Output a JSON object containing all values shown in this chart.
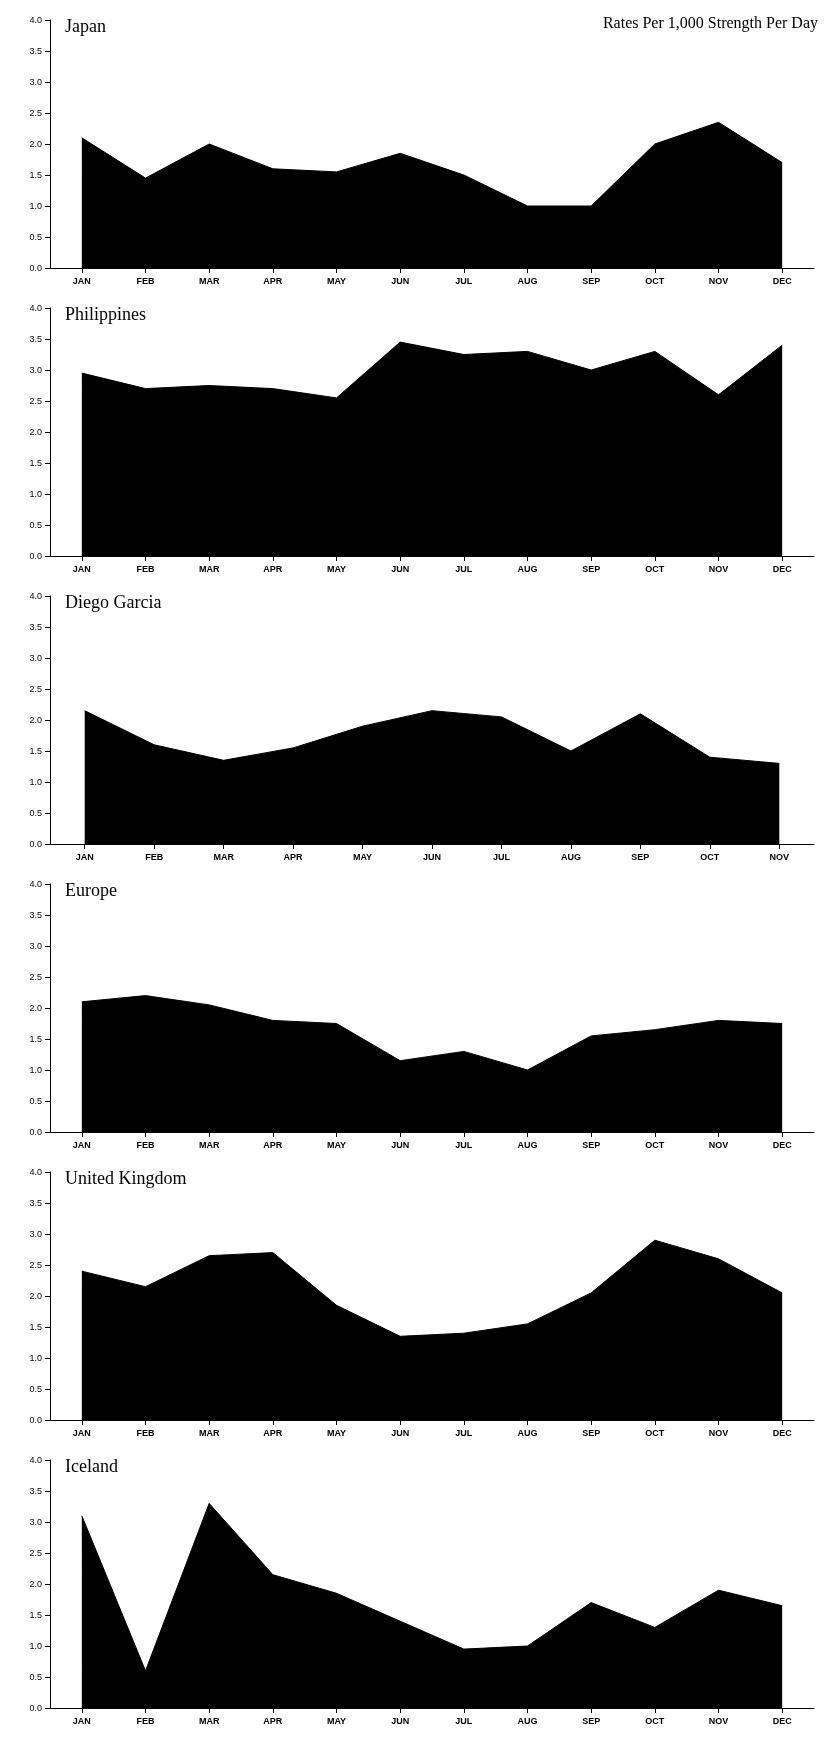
{
  "chart_data": [
    {
      "type": "area",
      "title": "Japan",
      "annotations": [
        "Rates Per 1,000 Strength Per Day"
      ],
      "categories": [
        "JAN",
        "FEB",
        "MAR",
        "APR",
        "MAY",
        "JUN",
        "JUL",
        "AUG",
        "SEP",
        "OCT",
        "NOV",
        "DEC"
      ],
      "series": [
        {
          "color": "#000000",
          "values": [
            2.1,
            1.45,
            2.0,
            1.6,
            1.55,
            1.85,
            1.5,
            1.0,
            1.0,
            2.0,
            2.35,
            1.7
          ]
        }
      ],
      "ylim": [
        0,
        4
      ],
      "yticks": [
        {
          "value": 0,
          "label": "0.0"
        },
        {
          "value": 0.5,
          "label": "0.5"
        },
        {
          "value": 1,
          "label": "1.0"
        },
        {
          "value": 1.5,
          "label": "1.5"
        },
        {
          "value": 2,
          "label": "2.0"
        },
        {
          "value": 2.5,
          "label": "2.5"
        },
        {
          "value": 3,
          "label": "3.0"
        },
        {
          "value": 3.5,
          "label": "3.5"
        },
        {
          "value": 4,
          "label": "4.0"
        }
      ]
    },
    {
      "type": "area",
      "title": "Philippines",
      "categories": [
        "JAN",
        "FEB",
        "MAR",
        "APR",
        "MAY",
        "JUN",
        "JUL",
        "AUG",
        "SEP",
        "OCT",
        "NOV",
        "DEC"
      ],
      "series": [
        {
          "color": "#000000",
          "values": [
            2.95,
            2.7,
            2.75,
            2.7,
            2.55,
            3.45,
            3.25,
            3.3,
            3.0,
            3.3,
            2.6,
            3.4
          ]
        }
      ],
      "ylim": [
        0,
        4
      ],
      "yticks": [
        {
          "value": 0,
          "label": "0.0"
        },
        {
          "value": 0.5,
          "label": "0.5"
        },
        {
          "value": 1,
          "label": "1.0"
        },
        {
          "value": 1.5,
          "label": "1.5"
        },
        {
          "value": 2,
          "label": "2.0"
        },
        {
          "value": 2.5,
          "label": "2.5"
        },
        {
          "value": 3,
          "label": "3.0"
        },
        {
          "value": 3.5,
          "label": "3.5"
        },
        {
          "value": 4,
          "label": "4.0"
        }
      ]
    },
    {
      "type": "area",
      "title": "Diego Garcia",
      "categories": [
        "JAN",
        "FEB",
        "MAR",
        "APR",
        "MAY",
        "JUN",
        "JUL",
        "AUG",
        "SEP",
        "OCT",
        "NOV"
      ],
      "series": [
        {
          "color": "#000000",
          "values": [
            2.15,
            1.6,
            1.35,
            1.55,
            1.9,
            2.15,
            2.05,
            1.5,
            2.1,
            1.4,
            1.3
          ]
        }
      ],
      "ylim": [
        0,
        4
      ],
      "yticks": [
        {
          "value": 0,
          "label": "0.0"
        },
        {
          "value": 0.5,
          "label": "0.5"
        },
        {
          "value": 1,
          "label": "1.0"
        },
        {
          "value": 1.5,
          "label": "1.5"
        },
        {
          "value": 2,
          "label": "2.0"
        },
        {
          "value": 2.5,
          "label": "2.5"
        },
        {
          "value": 3,
          "label": "3.0"
        },
        {
          "value": 3.5,
          "label": "3.5"
        },
        {
          "value": 4,
          "label": "4.0"
        }
      ]
    },
    {
      "type": "area",
      "title": "Europe",
      "categories": [
        "JAN",
        "FEB",
        "MAR",
        "APR",
        "MAY",
        "JUN",
        "JUL",
        "AUG",
        "SEP",
        "OCT",
        "NOV",
        "DEC"
      ],
      "series": [
        {
          "color": "#000000",
          "values": [
            2.1,
            2.2,
            2.05,
            1.8,
            1.75,
            1.15,
            1.3,
            1.0,
            1.55,
            1.65,
            1.8,
            1.75
          ]
        }
      ],
      "ylim": [
        0,
        4
      ],
      "yticks": [
        {
          "value": 0,
          "label": "0.0"
        },
        {
          "value": 0.5,
          "label": "0.5"
        },
        {
          "value": 1,
          "label": "1.0"
        },
        {
          "value": 1.5,
          "label": "1.5"
        },
        {
          "value": 2,
          "label": "2.0"
        },
        {
          "value": 2.5,
          "label": "2.5"
        },
        {
          "value": 3,
          "label": "3.0"
        },
        {
          "value": 3.5,
          "label": "3.5"
        },
        {
          "value": 4,
          "label": "4.0"
        }
      ]
    },
    {
      "type": "area",
      "title": "United Kingdom",
      "categories": [
        "JAN",
        "FEB",
        "MAR",
        "APR",
        "MAY",
        "JUN",
        "JUL",
        "AUG",
        "SEP",
        "OCT",
        "NOV",
        "DEC"
      ],
      "series": [
        {
          "color": "#000000",
          "values": [
            2.4,
            2.15,
            2.65,
            2.7,
            1.85,
            1.35,
            1.4,
            1.55,
            2.05,
            2.9,
            2.6,
            2.05
          ]
        }
      ],
      "ylim": [
        0,
        4
      ],
      "yticks": [
        {
          "value": 0,
          "label": "0.0"
        },
        {
          "value": 0.5,
          "label": "0.5"
        },
        {
          "value": 1,
          "label": "1.0"
        },
        {
          "value": 1.5,
          "label": "1.5"
        },
        {
          "value": 2,
          "label": "2.0"
        },
        {
          "value": 2.5,
          "label": "2.5"
        },
        {
          "value": 3,
          "label": "3.0"
        },
        {
          "value": 3.5,
          "label": "3.5"
        },
        {
          "value": 4,
          "label": "4.0"
        }
      ]
    },
    {
      "type": "area",
      "title": "Iceland",
      "categories": [
        "JAN",
        "FEB",
        "MAR",
        "APR",
        "MAY",
        "JUN",
        "JUL",
        "AUG",
        "SEP",
        "OCT",
        "NOV",
        "DEC"
      ],
      "series": [
        {
          "color": "#000000",
          "values": [
            3.1,
            0.6,
            3.3,
            2.15,
            1.85,
            1.4,
            0.95,
            1.0,
            1.7,
            1.3,
            1.9,
            1.65
          ]
        }
      ],
      "ylim": [
        0,
        4
      ],
      "yticks": [
        {
          "value": 0,
          "label": "0.0"
        },
        {
          "value": 0.5,
          "label": "0.5"
        },
        {
          "value": 1,
          "label": "1.0"
        },
        {
          "value": 1.5,
          "label": "1.5"
        },
        {
          "value": 2,
          "label": "2.0"
        },
        {
          "value": 2.5,
          "label": "2.5"
        },
        {
          "value": 3,
          "label": "3.0"
        },
        {
          "value": 3.5,
          "label": "3.5"
        },
        {
          "value": 4,
          "label": "4.0"
        }
      ]
    }
  ]
}
